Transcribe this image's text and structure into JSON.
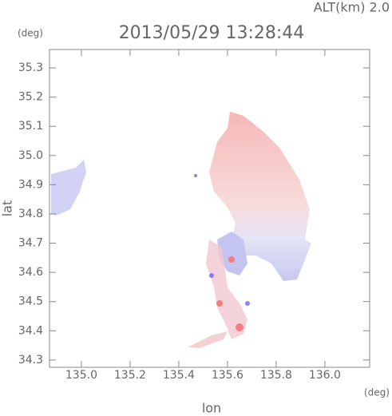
{
  "chart_data": {
    "type": "map",
    "title": "2013/05/29 13:28:44",
    "subtitle": "ALT(km) 2.0",
    "xlabel": "lon",
    "ylabel": "lat",
    "xunit": "(deg)",
    "yunit": "(deg)",
    "xlim": [
      134.869,
      136.184
    ],
    "ylim": [
      34.275,
      35.363
    ],
    "xticks": [
      {
        "value": 135.0,
        "label": "135.0"
      },
      135.2,
      135.4,
      135.6,
      135.8,
      {
        "value": 136.0,
        "label": "136.0"
      }
    ],
    "yticks": [
      34.3,
      34.4,
      34.5,
      34.6,
      34.7,
      34.8,
      34.9,
      {
        "value": 35.0,
        "label": "35.0"
      },
      35.1,
      35.2,
      35.3
    ]
  }
}
